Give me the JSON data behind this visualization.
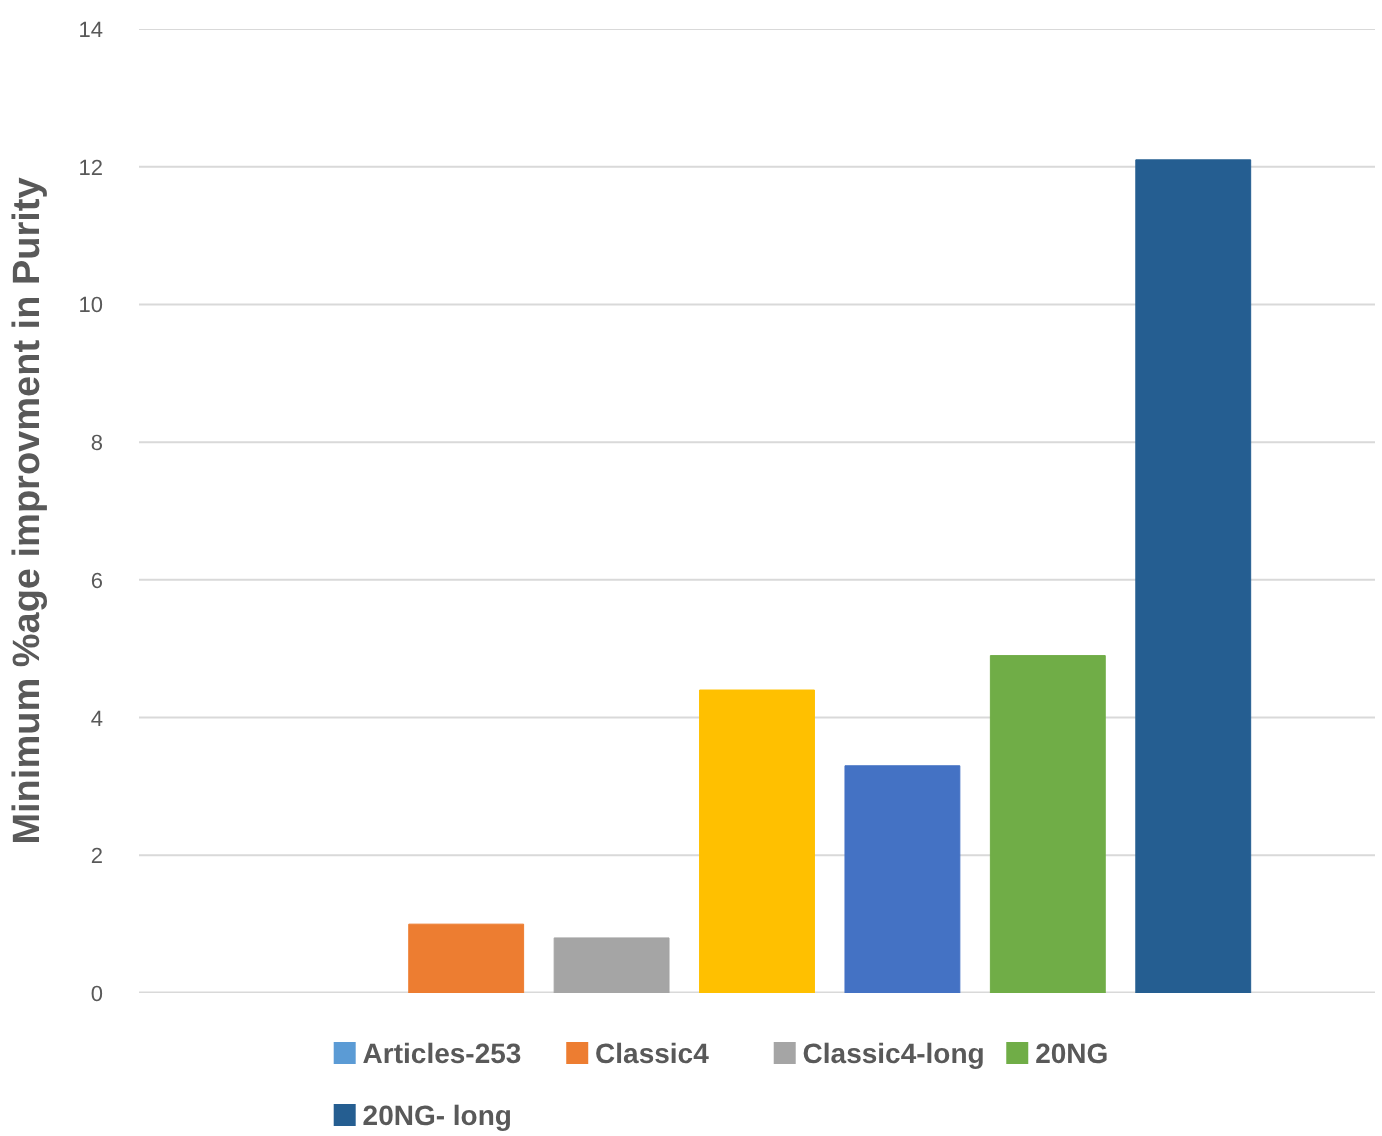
{
  "chart_data": {
    "type": "bar",
    "ylabel": "Minimum %age improvment in Purity",
    "categories": [
      null
    ],
    "series": [
      {
        "name": "Articles-253",
        "color": "#5b9bd5",
        "values": [
          null
        ]
      },
      {
        "name": "Classic4",
        "color": "#ed7d31",
        "values": [
          1.0
        ]
      },
      {
        "name": "Classic4-long",
        "color": "#a5a5a5",
        "values": [
          0.8
        ]
      },
      {
        "color": "#ffc000",
        "values": [
          4.4
        ]
      },
      {
        "color": "#4472c4",
        "values": [
          3.3
        ]
      },
      {
        "name": "20NG",
        "color": "#70ad47",
        "values": [
          4.9
        ]
      },
      {
        "name": "20NG- long",
        "color": "#255e91",
        "values": [
          12.1
        ]
      }
    ],
    "ylim": [
      0,
      14
    ],
    "yticks": [
      0,
      2,
      4,
      6,
      8,
      10,
      12,
      14
    ],
    "grid": "y",
    "legend": "bottom"
  }
}
